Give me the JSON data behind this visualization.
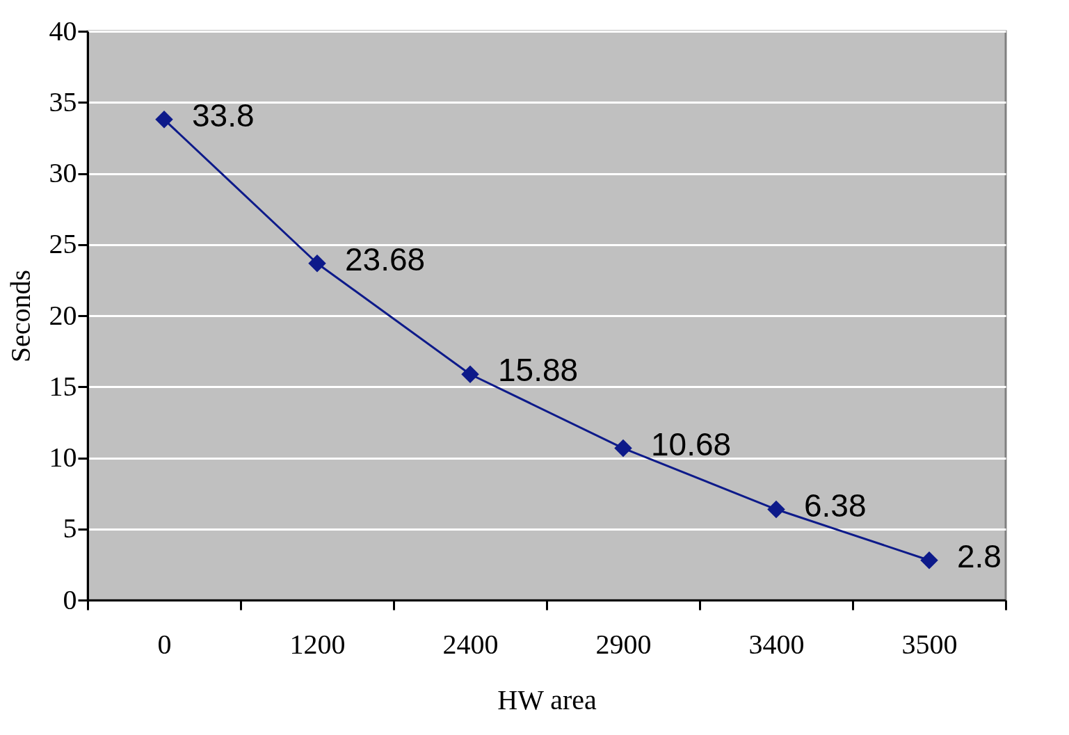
{
  "chart_data": {
    "type": "line",
    "xlabel": "HW area",
    "ylabel": "Seconds",
    "categories": [
      "0",
      "1200",
      "2400",
      "2900",
      "3400",
      "3500"
    ],
    "series": [
      {
        "color": "#0d1a8a",
        "values": [
          33.8,
          23.68,
          15.88,
          10.68,
          6.38,
          2.8
        ]
      }
    ],
    "ylim": [
      0,
      40
    ],
    "yticks": [
      0,
      5,
      10,
      15,
      20,
      25,
      30,
      35,
      40
    ],
    "grid": "y",
    "marker": "diamond",
    "line_style": "solid",
    "data_labels": true
  }
}
